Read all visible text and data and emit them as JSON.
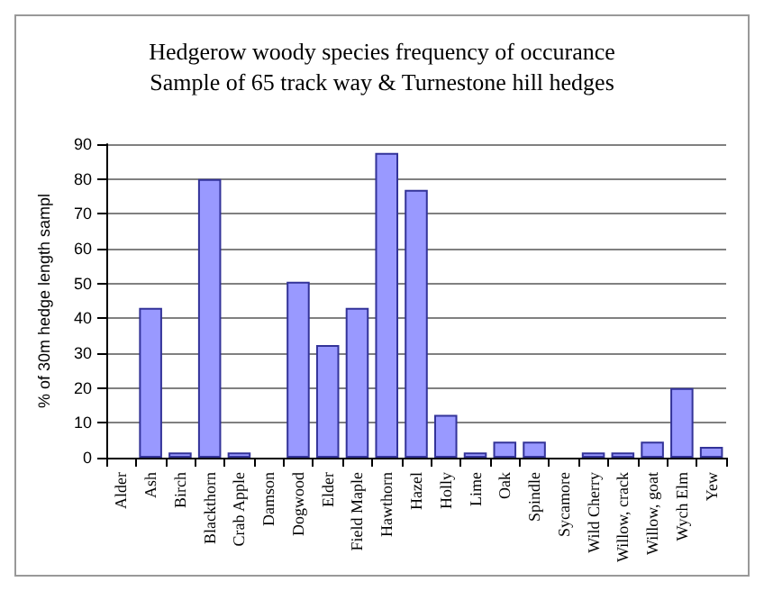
{
  "chart_data": {
    "type": "bar",
    "title": "Hedgerow woody species frequency of occurance",
    "subtitle": "Sample of 65 track way & Turnestone hill hedges",
    "ylabel": "% of 30m hedge length sampl",
    "categories": [
      "Alder",
      "Ash",
      "Birch",
      "Blackthorn",
      "Crab Apple",
      "Damson",
      "Dogwood",
      "Elder",
      "Field Maple",
      "Hawthorn",
      "Hazel",
      "Holly",
      "Lime",
      "Oak",
      "Spindle",
      "Sycamore",
      "Wild Cherry",
      "Willow, crack",
      "Willow, goat",
      "Wych Elm",
      "Yew"
    ],
    "values": [
      0,
      43,
      1.5,
      80,
      1.5,
      0,
      50.5,
      32.3,
      43,
      87.5,
      76.9,
      12.3,
      1.5,
      4.6,
      4.6,
      0,
      1.5,
      1.5,
      4.6,
      20,
      3.1
    ],
    "color": "#9999ff",
    "ylim": [
      0,
      90
    ],
    "yticks": [
      0,
      10,
      20,
      30,
      40,
      50,
      60,
      70,
      80,
      90
    ],
    "grid": "y"
  }
}
